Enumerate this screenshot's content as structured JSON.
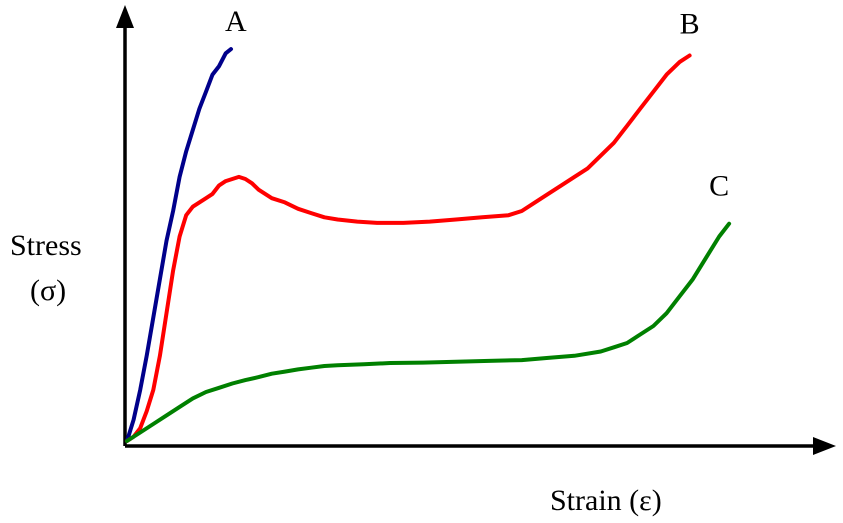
{
  "chart_data": {
    "type": "line",
    "xlabel": "Strain (ε)",
    "ylabel": [
      "Stress",
      "(σ)"
    ],
    "xlim": [
      0,
      100
    ],
    "ylim": [
      0,
      100
    ],
    "grid": false,
    "series": [
      {
        "name": "A",
        "color": "#00008b",
        "points": [
          [
            0,
            0
          ],
          [
            1,
            5
          ],
          [
            2,
            12
          ],
          [
            3,
            20
          ],
          [
            4,
            29
          ],
          [
            5,
            38
          ],
          [
            6,
            47
          ],
          [
            7,
            54
          ],
          [
            8,
            62
          ],
          [
            9,
            68
          ],
          [
            10,
            73
          ],
          [
            11,
            78
          ],
          [
            12,
            82
          ],
          [
            13,
            86
          ],
          [
            14,
            88
          ],
          [
            15,
            91
          ],
          [
            15.8,
            92
          ]
        ]
      },
      {
        "name": "B",
        "color": "#ff0000",
        "points": [
          [
            0,
            0
          ],
          [
            1,
            1
          ],
          [
            2,
            3
          ],
          [
            3,
            7
          ],
          [
            4,
            12
          ],
          [
            5,
            20
          ],
          [
            6,
            30
          ],
          [
            7,
            40
          ],
          [
            8,
            48
          ],
          [
            9,
            53
          ],
          [
            10,
            55
          ],
          [
            11,
            56
          ],
          [
            12,
            57
          ],
          [
            13,
            58
          ],
          [
            14,
            60
          ],
          [
            15,
            61
          ],
          [
            16,
            61.5
          ],
          [
            17,
            62
          ],
          [
            18,
            61.5
          ],
          [
            19,
            60.5
          ],
          [
            20,
            59
          ],
          [
            22,
            57
          ],
          [
            24,
            56
          ],
          [
            26,
            54.5
          ],
          [
            28,
            53.5
          ],
          [
            30,
            52.5
          ],
          [
            32,
            52
          ],
          [
            35,
            51.5
          ],
          [
            38,
            51.2
          ],
          [
            42,
            51.2
          ],
          [
            46,
            51.5
          ],
          [
            50,
            52
          ],
          [
            54,
            52.5
          ],
          [
            58,
            53
          ],
          [
            60,
            54
          ],
          [
            62,
            56
          ],
          [
            64,
            58
          ],
          [
            66,
            60
          ],
          [
            68,
            62
          ],
          [
            70,
            64
          ],
          [
            72,
            67
          ],
          [
            74,
            70
          ],
          [
            76,
            74
          ],
          [
            78,
            78
          ],
          [
            80,
            82
          ],
          [
            82,
            86
          ],
          [
            84,
            89
          ],
          [
            85.5,
            90.5
          ]
        ]
      },
      {
        "name": "C",
        "color": "#008000",
        "points": [
          [
            0,
            0
          ],
          [
            2,
            2
          ],
          [
            4,
            4
          ],
          [
            6,
            6
          ],
          [
            8,
            8
          ],
          [
            10,
            10
          ],
          [
            12,
            11.5
          ],
          [
            14,
            12.5
          ],
          [
            16,
            13.5
          ],
          [
            18,
            14.3
          ],
          [
            20,
            15
          ],
          [
            22,
            15.8
          ],
          [
            24,
            16.3
          ],
          [
            26,
            16.8
          ],
          [
            28,
            17.2
          ],
          [
            30,
            17.6
          ],
          [
            32,
            17.8
          ],
          [
            36,
            18
          ],
          [
            40,
            18.3
          ],
          [
            45,
            18.4
          ],
          [
            50,
            18.6
          ],
          [
            55,
            18.8
          ],
          [
            60,
            19
          ],
          [
            64,
            19.5
          ],
          [
            68,
            20
          ],
          [
            72,
            21
          ],
          [
            74,
            22
          ],
          [
            76,
            23
          ],
          [
            78,
            25
          ],
          [
            80,
            27
          ],
          [
            82,
            30
          ],
          [
            84,
            34
          ],
          [
            86,
            38
          ],
          [
            88,
            43
          ],
          [
            90,
            48
          ],
          [
            91.5,
            51
          ]
        ]
      }
    ]
  }
}
